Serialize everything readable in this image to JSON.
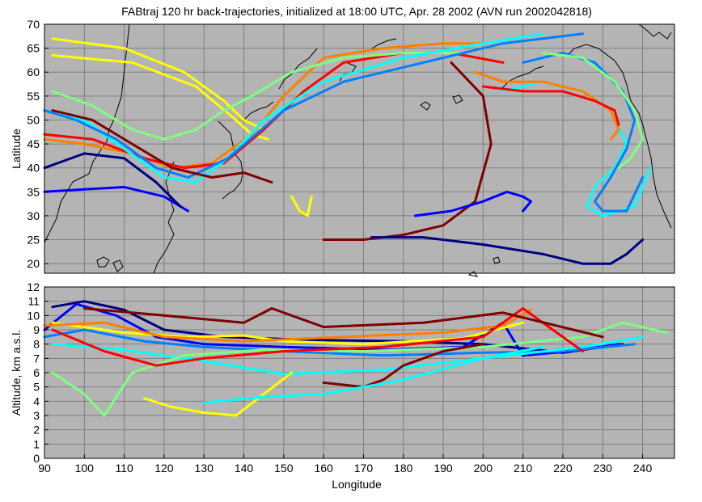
{
  "figure": {
    "title": "FABtraj 120 hr back-trajectories, initialized at 18:00 UTC, Apr. 28 2002 (AVN run 2002042818)"
  },
  "colors": {
    "panel_background": "#b4b4b4",
    "grid": "#7f7f7f",
    "coastline": "#000000",
    "trajectory_colormap": [
      "#00007f",
      "#0000ff",
      "#007fff",
      "#00ffff",
      "#7fff7f",
      "#ffff00",
      "#ff7f00",
      "#ff0000",
      "#7f0000"
    ]
  },
  "chart_data": [
    {
      "panel": "map",
      "type": "line",
      "title": "",
      "xlabel": "",
      "ylabel": "Latitude",
      "xlim": [
        90,
        248
      ],
      "ylim": [
        18,
        70
      ],
      "yticks": [
        20,
        25,
        30,
        35,
        40,
        45,
        50,
        55,
        60,
        65,
        70
      ],
      "grid": true,
      "series_note_colors_only": true,
      "series": [
        {
          "color": "#ffff00",
          "x": [
            92,
            110,
            125,
            135,
            140,
            145
          ],
          "y": [
            67,
            65,
            60,
            54,
            50,
            48
          ]
        },
        {
          "color": "#ffff00",
          "x": [
            92,
            112,
            128,
            138,
            142,
            146
          ],
          "y": [
            63.5,
            62,
            57,
            50,
            47,
            46
          ]
        },
        {
          "color": "#ff7f00",
          "x": [
            90,
            100,
            112,
            122,
            132,
            142,
            150,
            160,
            175,
            190,
            200
          ],
          "y": [
            46,
            45,
            43,
            40,
            41,
            47,
            55,
            63,
            65,
            66,
            66
          ]
        },
        {
          "color": "#ff0000",
          "x": [
            90,
            102,
            115,
            125,
            135,
            145,
            155,
            165,
            180,
            192,
            205
          ],
          "y": [
            47,
            46,
            42,
            40,
            41,
            48,
            56,
            62,
            64,
            64,
            62
          ]
        },
        {
          "color": "#7fff7f",
          "x": [
            92,
            102,
            112,
            120,
            128,
            135,
            142,
            152,
            165,
            180,
            195
          ],
          "y": [
            56,
            53,
            48,
            46,
            48,
            52,
            55,
            60,
            63,
            64,
            64
          ]
        },
        {
          "color": "#00ffff",
          "x": [
            90,
            100,
            110,
            120,
            128,
            136,
            145,
            160,
            180,
            200,
            215
          ],
          "y": [
            52,
            50,
            44,
            38,
            37,
            42,
            50,
            58,
            63,
            66,
            68
          ]
        },
        {
          "color": "#007fff",
          "x": [
            90,
            98,
            108,
            118,
            126,
            136,
            150,
            165,
            185,
            205,
            225
          ],
          "y": [
            52,
            50,
            46,
            40,
            38,
            42,
            52,
            58,
            62,
            66,
            68
          ]
        },
        {
          "color": "#0000ff",
          "x": [
            90,
            100,
            110,
            120,
            126
          ],
          "y": [
            35,
            35.5,
            36,
            34,
            31
          ]
        },
        {
          "color": "#00007f",
          "x": [
            90,
            100,
            110,
            118,
            124
          ],
          "y": [
            40,
            43,
            42,
            37,
            32
          ]
        },
        {
          "color": "#7f0000",
          "x": [
            92,
            102,
            112,
            122,
            132,
            140,
            147
          ],
          "y": [
            52,
            50,
            45,
            40,
            38,
            39,
            37
          ]
        },
        {
          "color": "#ffff00",
          "x": [
            152,
            154,
            156,
            157
          ],
          "y": [
            34,
            31,
            30,
            34
          ]
        },
        {
          "color": "#7f0000",
          "x": [
            160,
            170,
            180,
            190,
            198,
            202,
            200,
            192
          ],
          "y": [
            25,
            25,
            26,
            28,
            33,
            45,
            55,
            62
          ]
        },
        {
          "color": "#00007f",
          "x": [
            172,
            185,
            200,
            215,
            225,
            232,
            236,
            240
          ],
          "y": [
            25.5,
            25.5,
            24,
            22,
            20,
            20,
            22,
            25
          ]
        },
        {
          "color": "#0000ff",
          "x": [
            183,
            192,
            200,
            206,
            210,
            212,
            210
          ],
          "y": [
            30,
            31,
            33,
            35,
            34,
            33,
            31
          ]
        },
        {
          "color": "#00ffff",
          "x": [
            205,
            215,
            225,
            232,
            236,
            233,
            228,
            226,
            230,
            238,
            242
          ],
          "y": [
            56,
            58,
            56,
            52,
            45,
            40,
            36,
            32,
            30,
            32,
            40
          ]
        },
        {
          "color": "#007fff",
          "x": [
            210,
            220,
            228,
            235,
            238,
            236,
            232,
            228,
            230,
            236,
            240
          ],
          "y": [
            62,
            64,
            62,
            56,
            50,
            44,
            38,
            33,
            31,
            31,
            38
          ]
        },
        {
          "color": "#7fff7f",
          "x": [
            215,
            225,
            233,
            238,
            240,
            237,
            234
          ],
          "y": [
            64,
            63,
            58,
            52,
            46,
            42,
            40
          ]
        },
        {
          "color": "#ff7f00",
          "x": [
            198,
            205,
            215,
            225,
            232,
            234,
            232
          ],
          "y": [
            60,
            58,
            58,
            56,
            52,
            48,
            46
          ]
        },
        {
          "color": "#ff0000",
          "x": [
            200,
            210,
            220,
            228,
            233,
            234
          ],
          "y": [
            57,
            56,
            56,
            54,
            52,
            49
          ]
        }
      ]
    },
    {
      "panel": "altitude",
      "type": "line",
      "title": "",
      "xlabel": "Longitude",
      "ylabel": "Altitude, km a.s.l.",
      "xlim": [
        90,
        248
      ],
      "ylim": [
        0,
        12
      ],
      "xticks": [
        90,
        100,
        110,
        120,
        130,
        140,
        150,
        160,
        170,
        180,
        190,
        200,
        210,
        220,
        230,
        240
      ],
      "yticks": [
        0,
        1,
        2,
        3,
        4,
        5,
        6,
        7,
        8,
        9,
        10,
        11,
        12
      ],
      "grid": true,
      "series": [
        {
          "color": "#00007f",
          "x": [
            92,
            100,
            110,
            120,
            135,
            155,
            180,
            200,
            220,
            235
          ],
          "y": [
            10.6,
            11,
            10.4,
            9,
            8.5,
            8.3,
            8.2,
            8,
            7.4,
            8
          ]
        },
        {
          "color": "#0000ff",
          "x": [
            90,
            98,
            108,
            118,
            130,
            150,
            175,
            195,
            205,
            210,
            222,
            234
          ],
          "y": [
            9,
            10.8,
            10,
            8.5,
            8,
            7.8,
            7.6,
            7.8,
            9.5,
            7.2,
            7.5,
            8
          ]
        },
        {
          "color": "#007fff",
          "x": [
            90,
            100,
            115,
            130,
            150,
            175,
            200,
            220,
            238
          ],
          "y": [
            8.5,
            9,
            8.2,
            7.8,
            7.5,
            7.2,
            7.4,
            7.5,
            8
          ]
        },
        {
          "color": "#00ffff",
          "x": [
            92,
            110,
            130,
            150,
            175,
            200,
            225,
            240
          ],
          "y": [
            8,
            7.6,
            6.8,
            5.9,
            6.2,
            7,
            7.8,
            8.5
          ]
        },
        {
          "color": "#7fff7f",
          "x": [
            92,
            100,
            105,
            112,
            125,
            145,
            170,
            200,
            225,
            235,
            246
          ],
          "y": [
            6,
            4.5,
            3,
            6,
            7.2,
            7.6,
            7.5,
            7.8,
            8.5,
            9.5,
            8.8
          ]
        },
        {
          "color": "#ffff00",
          "x": [
            92,
            110,
            125,
            140,
            150,
            170,
            195,
            210
          ],
          "y": [
            9.5,
            8.8,
            8.5,
            8.6,
            8.2,
            8,
            8.4,
            9.5
          ]
        },
        {
          "color": "#ffff00",
          "x": [
            115,
            122,
            130,
            138,
            145,
            152
          ],
          "y": [
            4.2,
            3.6,
            3.2,
            3,
            4.5,
            6
          ]
        },
        {
          "color": "#ff7f00",
          "x": [
            90,
            105,
            120,
            140,
            165,
            190,
            205,
            212
          ],
          "y": [
            9.3,
            9.5,
            8.5,
            8.2,
            8.5,
            8.8,
            9.3,
            10.4
          ]
        },
        {
          "color": "#ff0000",
          "x": [
            92,
            105,
            118,
            130,
            150,
            175,
            200,
            210,
            225
          ],
          "y": [
            9,
            7.5,
            6.5,
            7,
            7.5,
            7.8,
            8.5,
            10.5,
            7.5
          ]
        },
        {
          "color": "#7f0000",
          "x": [
            100,
            120,
            140,
            147,
            160,
            185,
            205,
            230
          ],
          "y": [
            10.5,
            10,
            9.5,
            10.5,
            9.2,
            9.5,
            10.2,
            8.5
          ]
        },
        {
          "color": "#7f0000",
          "x": [
            160,
            170,
            175,
            180,
            190,
            200
          ],
          "y": [
            5.3,
            5,
            5.5,
            6.5,
            7.5,
            8
          ]
        },
        {
          "color": "#00ffff",
          "x": [
            130,
            145,
            160,
            180,
            200,
            215
          ],
          "y": [
            3.9,
            4.3,
            4.5,
            5.5,
            7,
            7.8
          ]
        }
      ]
    }
  ]
}
